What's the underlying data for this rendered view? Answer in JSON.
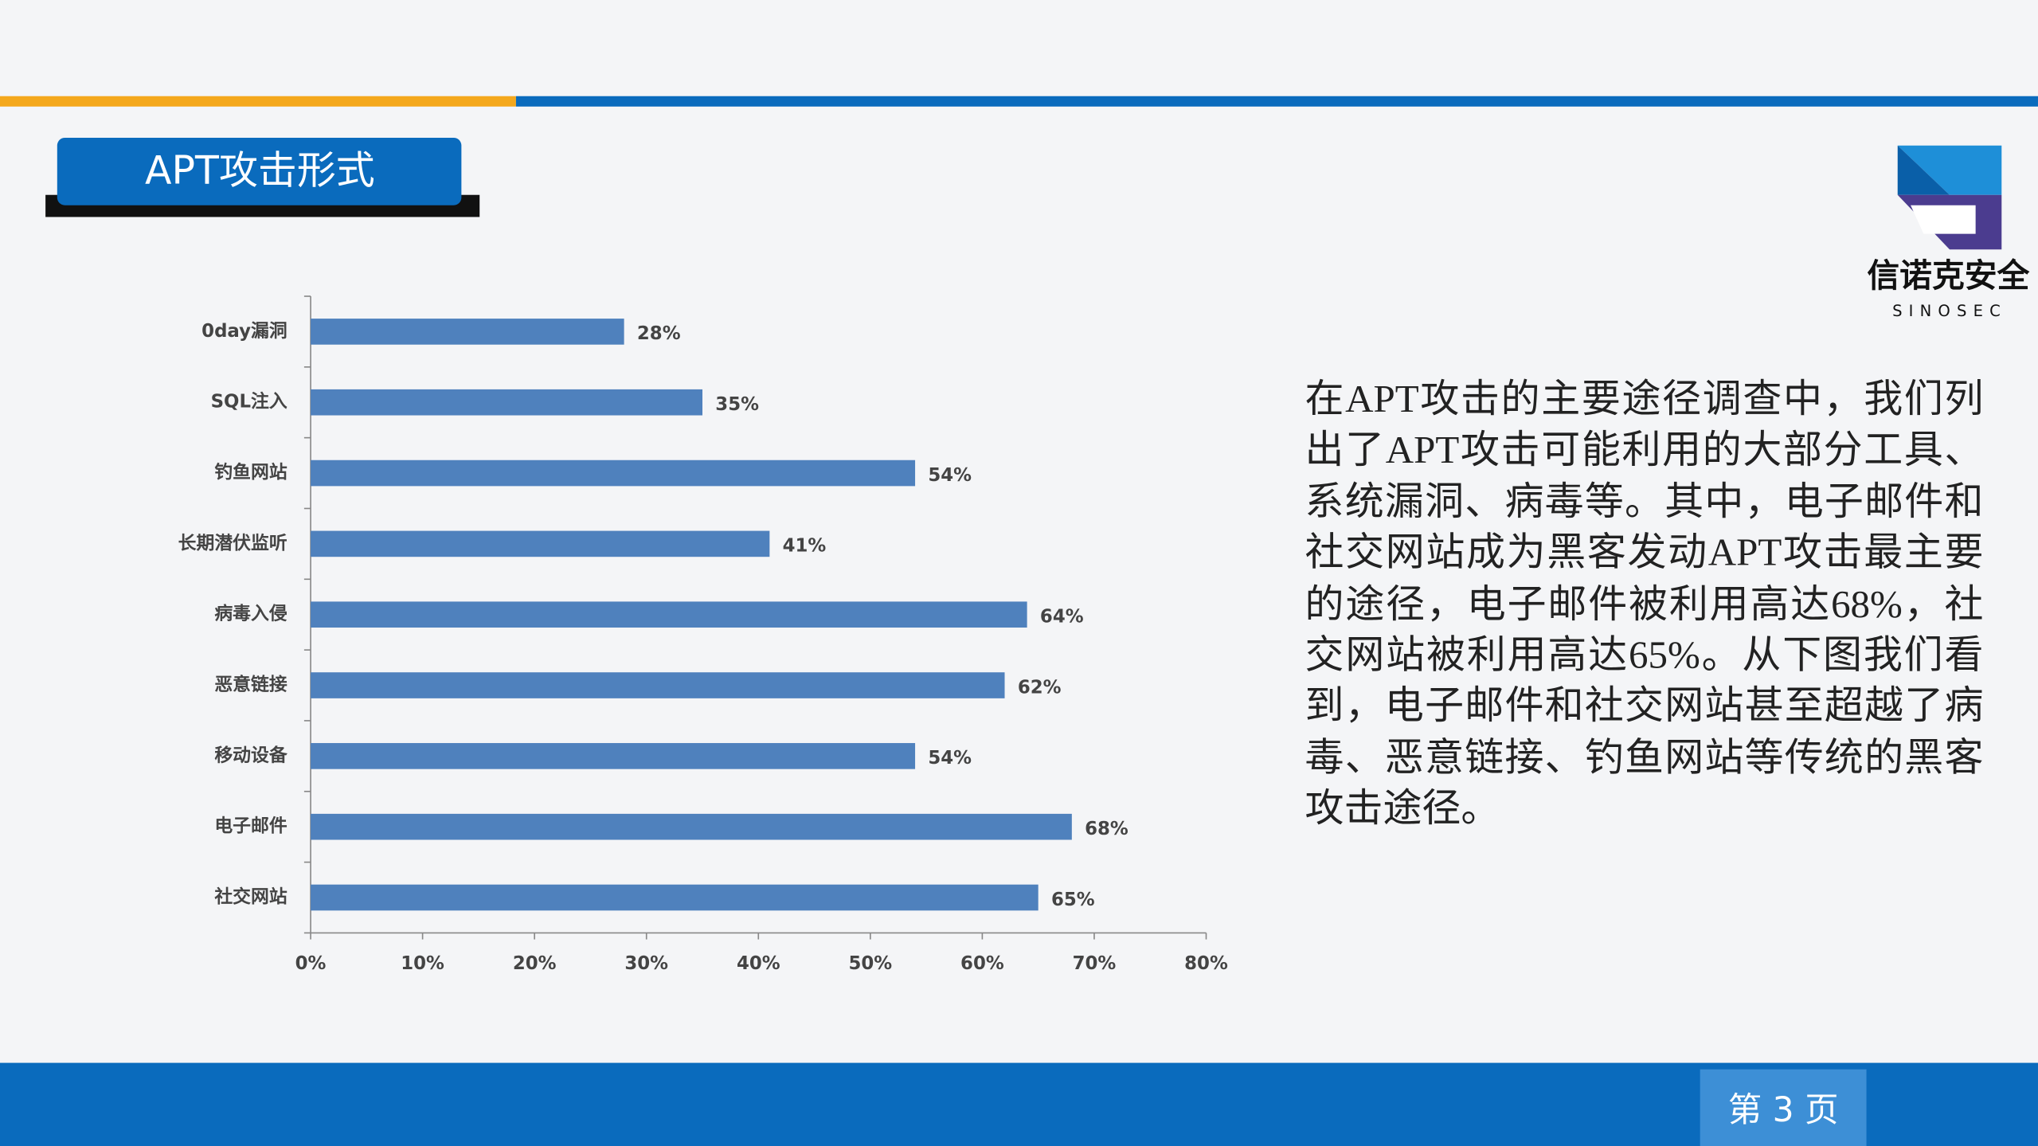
{
  "header": {
    "title": "APT攻击形式"
  },
  "logo": {
    "name": "信诺克安全",
    "sub": "SINOSEC"
  },
  "body": {
    "text": "在APT攻击的主要途径调查中，我们列出了APT攻击可能利用的大部分工具、系统漏洞、病毒等。其中，电子邮件和社交网站成为黑客发动APT攻击最主要的途径，电子邮件被利用高达68%，社交网站被利用高达65%。从下图我们看到，电子邮件和社交网站甚至超越了病毒、恶意链接、钓鱼网站等传统的黑客攻击途径。"
  },
  "footer": {
    "page": "第 3 页"
  },
  "chart_data": {
    "type": "hbar",
    "categories": [
      "0day漏洞",
      "SQL注入",
      "钓鱼网站",
      "长期潜伏监听",
      "病毒入侵",
      "恶意链接",
      "移动设备",
      "电子邮件",
      "社交网站"
    ],
    "values": [
      28,
      35,
      54,
      41,
      64,
      62,
      54,
      68,
      65
    ],
    "value_labels": [
      "28%",
      "35%",
      "54%",
      "41%",
      "64%",
      "62%",
      "54%",
      "68%",
      "65%"
    ],
    "color": "#4f81bd",
    "xlim": [
      0,
      80
    ],
    "xticks": [
      {
        "value": 0,
        "label": "0%"
      },
      {
        "value": 10,
        "label": "10%"
      },
      {
        "value": 20,
        "label": "20%"
      },
      {
        "value": 30,
        "label": "30%"
      },
      {
        "value": 40,
        "label": "40%"
      },
      {
        "value": 50,
        "label": "50%"
      },
      {
        "value": 60,
        "label": "60%"
      },
      {
        "value": 70,
        "label": "70%"
      },
      {
        "value": 80,
        "label": "80%"
      }
    ],
    "grid": false
  }
}
